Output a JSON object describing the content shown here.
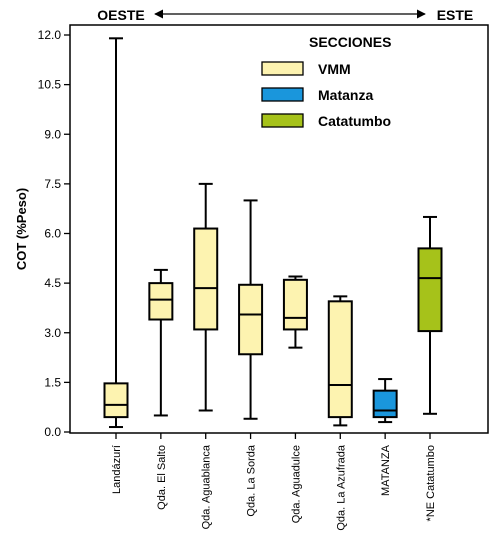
{
  "chart_data": {
    "type": "boxplot",
    "direction": {
      "left_label": "OESTE",
      "right_label": "ESTE"
    },
    "ylabel": "COT (%Peso)",
    "ylim": [
      0,
      12
    ],
    "yticks": [
      "0.0",
      "1.5",
      "3.0",
      "4.5",
      "6.0",
      "7.5",
      "9.0",
      "10.5",
      "12.0"
    ],
    "legend": {
      "title": "SECCIONES",
      "placement": "top-right",
      "items": [
        {
          "label": "VMM",
          "color": "#fdf3b0"
        },
        {
          "label": "Matanza",
          "color": "#1a96dc"
        },
        {
          "label": "Catatumbo",
          "color": "#a6c21a"
        }
      ]
    },
    "categories": [
      {
        "label": "Landázurí",
        "section": "VMM",
        "min": 0.15,
        "q1": 0.45,
        "median": 0.82,
        "q3": 1.47,
        "max": 11.9
      },
      {
        "label": "Qda. El Salto",
        "section": "VMM",
        "min": 0.5,
        "q1": 3.4,
        "median": 4.0,
        "q3": 4.5,
        "max": 4.9
      },
      {
        "label": "Qda. Aguablanca",
        "section": "VMM",
        "min": 0.65,
        "q1": 3.1,
        "median": 4.35,
        "q3": 6.15,
        "max": 7.5
      },
      {
        "label": "Qda. La Sorda",
        "section": "VMM",
        "min": 0.4,
        "q1": 2.35,
        "median": 3.55,
        "q3": 4.45,
        "max": 7.0
      },
      {
        "label": "Qda. Aguadulce",
        "section": "VMM",
        "min": 2.55,
        "q1": 3.1,
        "median": 3.45,
        "q3": 4.6,
        "max": 4.7
      },
      {
        "label": "Qda. La Azufrada",
        "section": "VMM",
        "min": 0.2,
        "q1": 0.45,
        "median": 1.42,
        "q3": 3.95,
        "max": 4.1
      },
      {
        "label": "MATANZA",
        "section": "Matanza",
        "min": 0.3,
        "q1": 0.45,
        "median": 0.65,
        "q3": 1.25,
        "max": 1.6
      },
      {
        "label": "*NE Catatumbo",
        "section": "Catatumbo",
        "min": 0.55,
        "q1": 3.05,
        "median": 4.65,
        "q3": 5.55,
        "max": 6.5
      }
    ]
  }
}
